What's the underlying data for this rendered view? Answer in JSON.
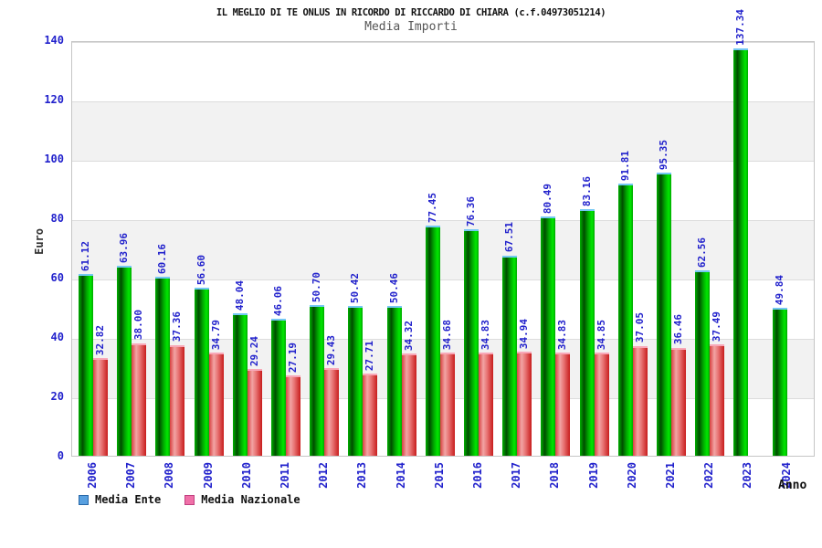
{
  "header": {
    "title": "IL MEGLIO DI TE ONLUS IN RICORDO DI RICCARDO DI CHIARA (c.f.04973051214)",
    "subtitle": "Media Importi"
  },
  "chart_data": {
    "type": "bar",
    "title": "Media Importi",
    "xlabel": "Anno",
    "ylabel": "Euro",
    "ylim": [
      0,
      140
    ],
    "yticks": [
      0,
      20,
      40,
      60,
      80,
      100,
      120,
      140
    ],
    "grid": "horizontal-lines-with-alternating-bands",
    "legend_position": "bottom-left",
    "categories": [
      "2006",
      "2007",
      "2008",
      "2009",
      "2010",
      "2011",
      "2012",
      "2013",
      "2014",
      "2015",
      "2016",
      "2017",
      "2018",
      "2019",
      "2020",
      "2021",
      "2022",
      "2023",
      "2024"
    ],
    "series": [
      {
        "name": "Media Ente",
        "legend_color": "#58a0e0",
        "bar_color": "green",
        "values": [
          61.12,
          63.96,
          60.16,
          56.6,
          48.04,
          46.06,
          50.7,
          50.42,
          50.46,
          77.45,
          76.36,
          67.51,
          80.49,
          83.16,
          91.81,
          95.35,
          62.56,
          137.34,
          49.84
        ]
      },
      {
        "name": "Media Nazionale",
        "legend_color": "#f070a8",
        "bar_color": "red",
        "values": [
          32.82,
          38.0,
          37.36,
          34.79,
          29.24,
          27.19,
          29.43,
          27.71,
          34.32,
          34.68,
          34.83,
          34.94,
          34.83,
          34.85,
          37.05,
          36.46,
          37.49,
          null,
          null
        ]
      }
    ]
  },
  "colors": {
    "tick_label_blue": "#2222cc",
    "value_label_blue": "#2222cc",
    "band_gray": "#f2f2f2",
    "grid_line": "#dcdcdc",
    "green_bar_bright": "#00e800",
    "green_bar_dark": "#004d00",
    "red_bar_bright": "#f2a4a4",
    "red_bar_dark": "#c81c1c",
    "subtitle_gray": "#555555"
  }
}
